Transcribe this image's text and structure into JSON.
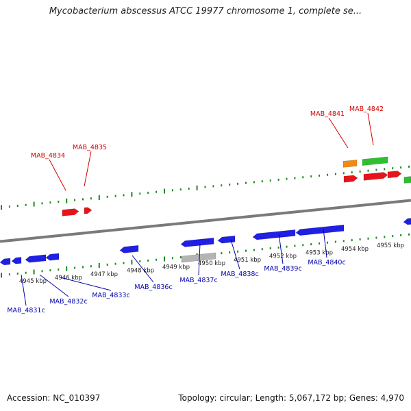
{
  "title": "Mycobacterium abscessus ATCC 19977 chromosome 1, complete se...",
  "footer": {
    "accession": "Accession: NC_010397",
    "summary": "Topology: circular; Length: 5,067,172 bp; Genes: 4,970"
  },
  "colors": {
    "forward_label": "#d40000",
    "reverse_label": "#0000aa",
    "forward_gene": "#e8141b",
    "reverse_gene": "#1f1fe6",
    "rna_gene": "#2fc02f",
    "other_gene": "#f28c0f",
    "pseudo_gene": "#b4b4b4",
    "backbone": "#7a7a7a",
    "tick": "#1a8a1a"
  },
  "kbp_labels": [
    "4945 kbp",
    "4946 kbp",
    "4947 kbp",
    "4948 kbp",
    "4949 kbp",
    "4950 kbp",
    "4951 kbp",
    "4952 kbp",
    "4953 kbp",
    "4954 kbp",
    "4955 kbp"
  ],
  "forward_gene_labels": [
    "MAB_4834",
    "MAB_4835",
    "MAB_4841",
    "MAB_4842"
  ],
  "reverse_gene_labels": [
    "MAB_4831c",
    "MAB_4832c",
    "MAB_4833c",
    "MAB_4836c",
    "MAB_4837c",
    "MAB_4838c",
    "MAB_4839c",
    "MAB_4840c"
  ]
}
